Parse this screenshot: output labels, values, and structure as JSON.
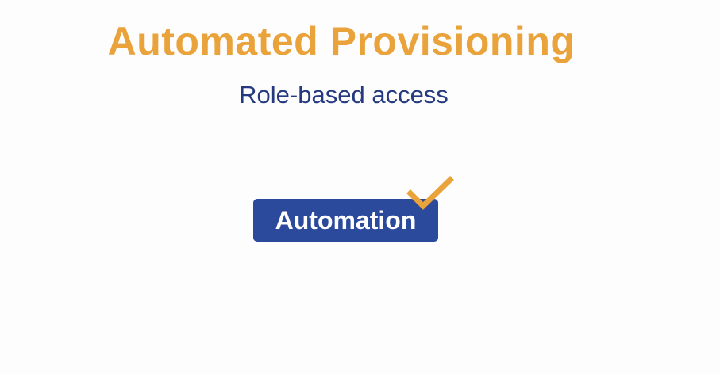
{
  "slide": {
    "title": "Automated Provisioning",
    "subtitle": "Role-based access",
    "badge_label": "Automation",
    "badge_icon": "checkmark-icon"
  },
  "colors": {
    "title": "#e9a33a",
    "subtitle": "#24397f",
    "badge_bg": "#2c4a9b",
    "badge_text": "#ffffff",
    "check": "#e9a33a",
    "background": "#fdfdfd"
  }
}
